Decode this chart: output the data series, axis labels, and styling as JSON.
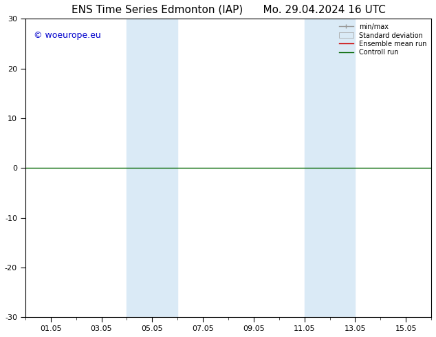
{
  "title_left": "ENS Time Series Edmonton (IAP)",
  "title_right": "Mo. 29.04.2024 16 UTC",
  "watermark": "© woeurope.eu",
  "watermark_color": "#0000cc",
  "ylim": [
    -30,
    30
  ],
  "yticks": [
    -30,
    -20,
    -10,
    0,
    10,
    20,
    30
  ],
  "xtick_labels": [
    "01.05",
    "03.05",
    "05.05",
    "07.05",
    "09.05",
    "11.05",
    "13.05",
    "15.05"
  ],
  "xtick_positions": [
    1,
    3,
    5,
    7,
    9,
    11,
    13,
    15
  ],
  "xlim": [
    0,
    16
  ],
  "shaded_bands": [
    {
      "x_start": 4.0,
      "x_end": 6.0
    },
    {
      "x_start": 11.0,
      "x_end": 13.0
    }
  ],
  "shaded_color": "#daeaf6",
  "hline_y": 0,
  "hline_color": "#006600",
  "hline_lw": 1.0,
  "background_color": "#ffffff",
  "plot_background": "#ffffff",
  "title_fontsize": 11,
  "tick_fontsize": 8,
  "watermark_fontsize": 9
}
